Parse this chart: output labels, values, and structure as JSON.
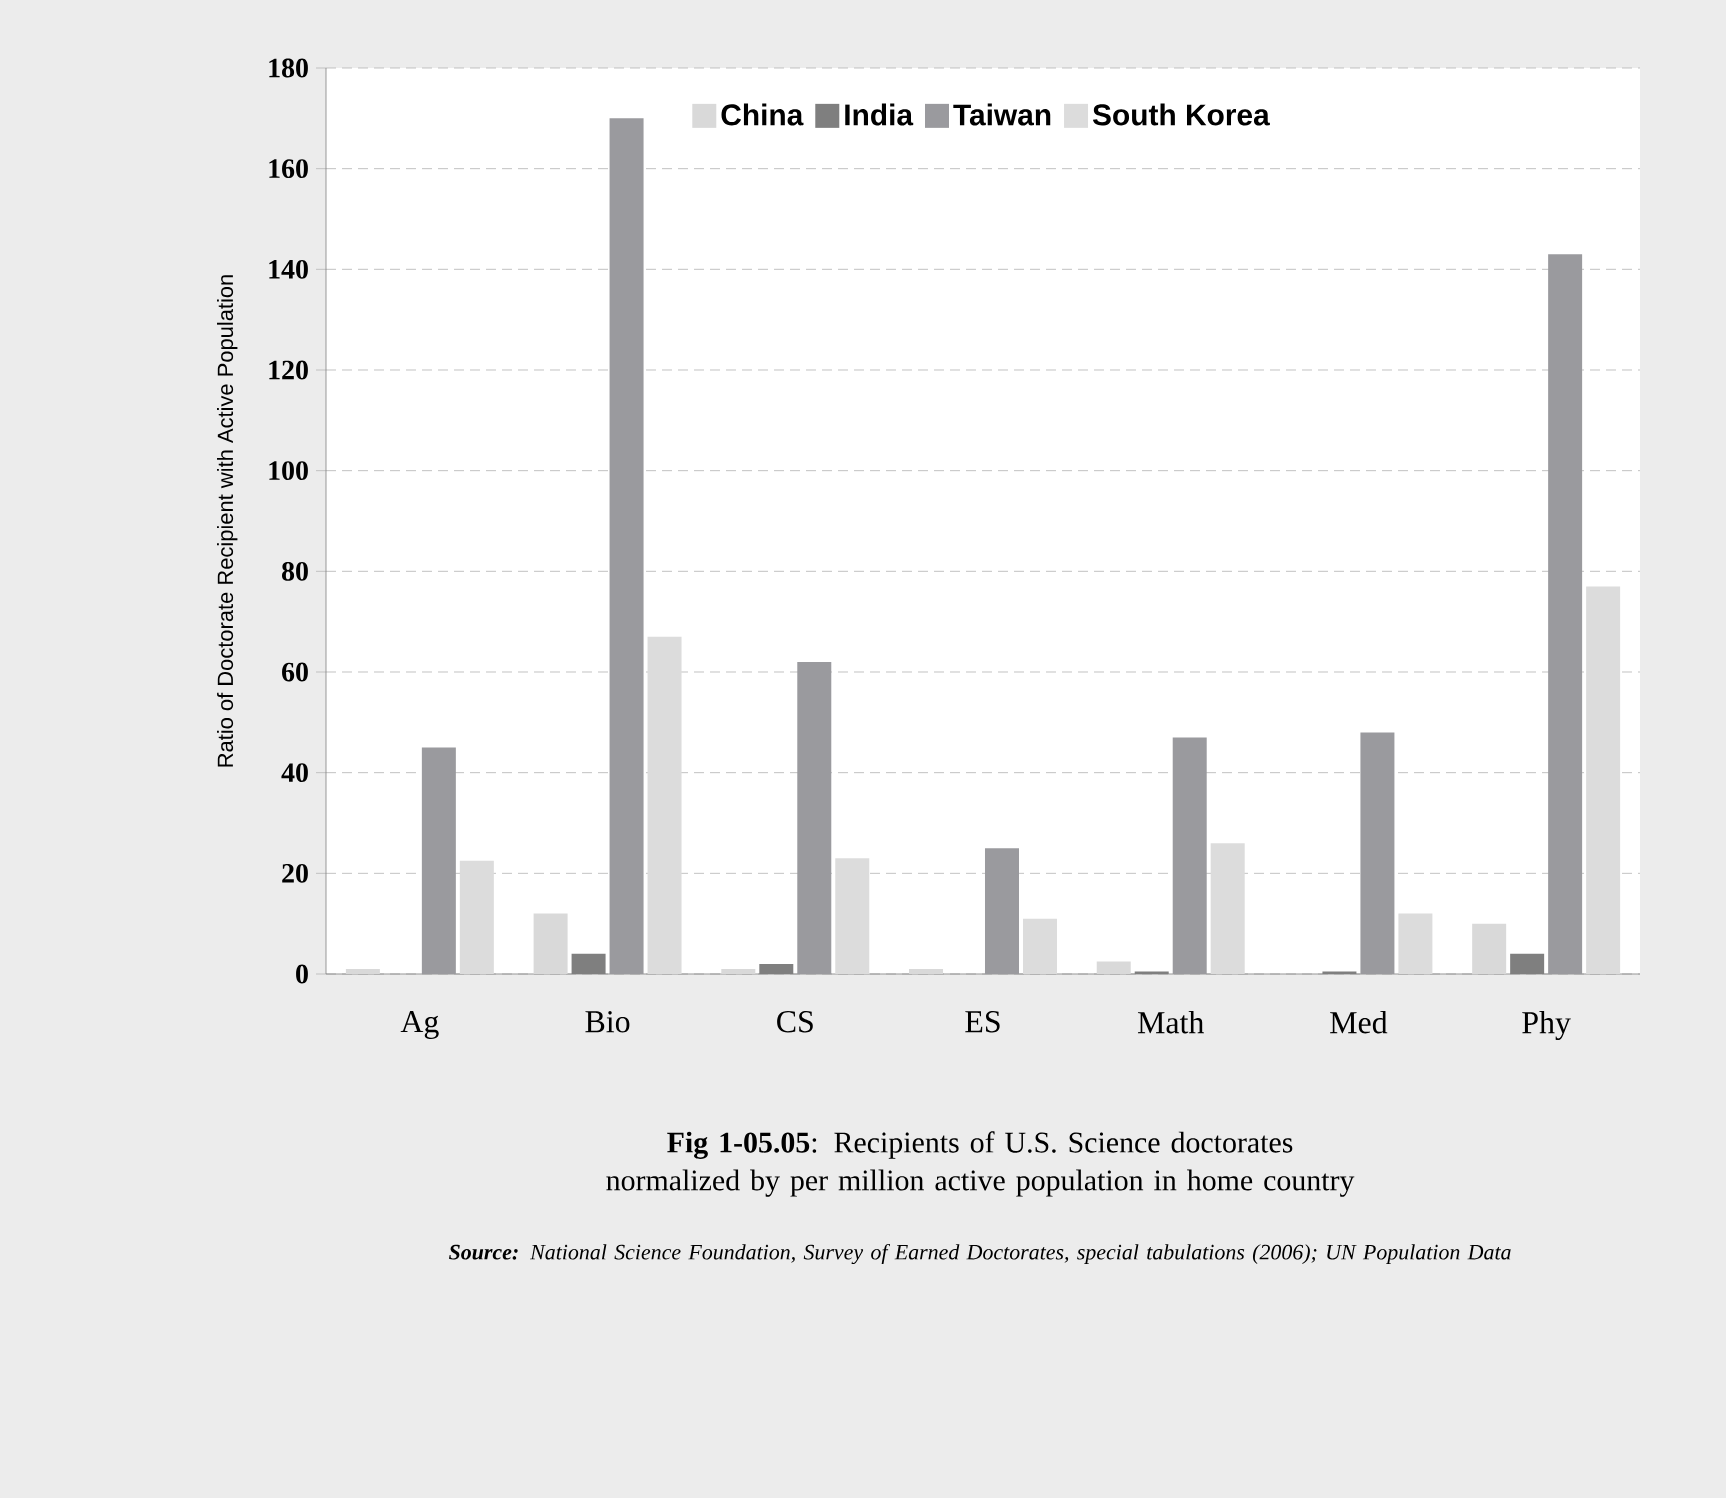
{
  "chart_data": {
    "type": "bar",
    "title": "**Fig 1-05.05**: Recipients of U.S. Science doctorates normalized by per million  active population in home country",
    "annotations": [
      "**Source:** *National Science Foundation, Survey of Earned Doctorates, special tabulations (2006); UN Population Data*"
    ],
    "ylabel": "Ratio of Doctorate Recipient with Active Population",
    "categories": [
      "Ag",
      "Bio",
      "CS",
      "ES",
      "Math",
      "Med",
      "Phy"
    ],
    "series": [
      {
        "name": "China",
        "color": "#d9d9d9",
        "values": [
          1,
          12,
          1,
          1,
          2.5,
          null,
          10
        ]
      },
      {
        "name": "India",
        "color": "#7f7f7f",
        "values": [
          0,
          4,
          2,
          0,
          0.5,
          0.5,
          4
        ]
      },
      {
        "name": "Taiwan",
        "color": "#9a9a9e",
        "values": [
          45,
          170,
          62,
          25,
          47,
          48,
          143
        ]
      },
      {
        "name": "South Korea",
        "color": "#dcdcdc",
        "values": [
          22.5,
          67,
          23,
          11,
          26,
          12,
          77
        ]
      }
    ],
    "ylim": [
      0,
      180
    ],
    "yticks": [
      0,
      20,
      40,
      60,
      80,
      100,
      120,
      140,
      160,
      180
    ],
    "grid": "y",
    "legend": "top"
  }
}
